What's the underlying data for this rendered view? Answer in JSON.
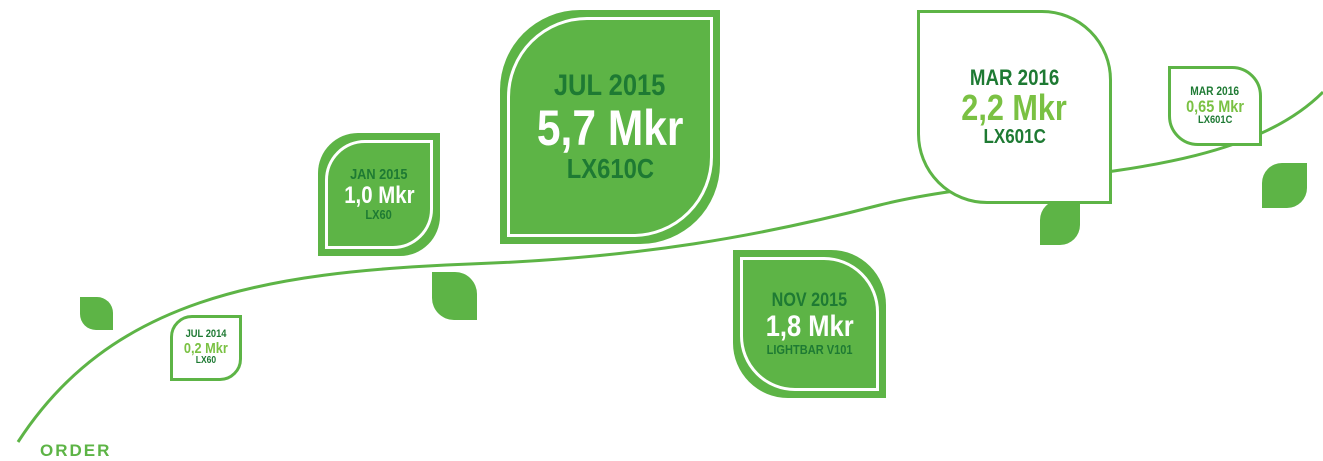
{
  "label": "ORDER",
  "milestones": [
    {
      "date": "JUL 2014",
      "amount": "0,2 Mkr",
      "product": "LX60"
    },
    {
      "date": "JAN 2015",
      "amount": "1,0 Mkr",
      "product": "LX60"
    },
    {
      "date": "JUL 2015",
      "amount": "5,7 Mkr",
      "product": "LX610C"
    },
    {
      "date": "NOV 2015",
      "amount": "1,8 Mkr",
      "product": "LIGHTBAR V101"
    },
    {
      "date": "MAR 2016",
      "amount": "2,2 Mkr",
      "product": "LX601C"
    },
    {
      "date": "MAR 2016",
      "amount": "0,65 Mkr",
      "product": "LX601C"
    }
  ]
}
